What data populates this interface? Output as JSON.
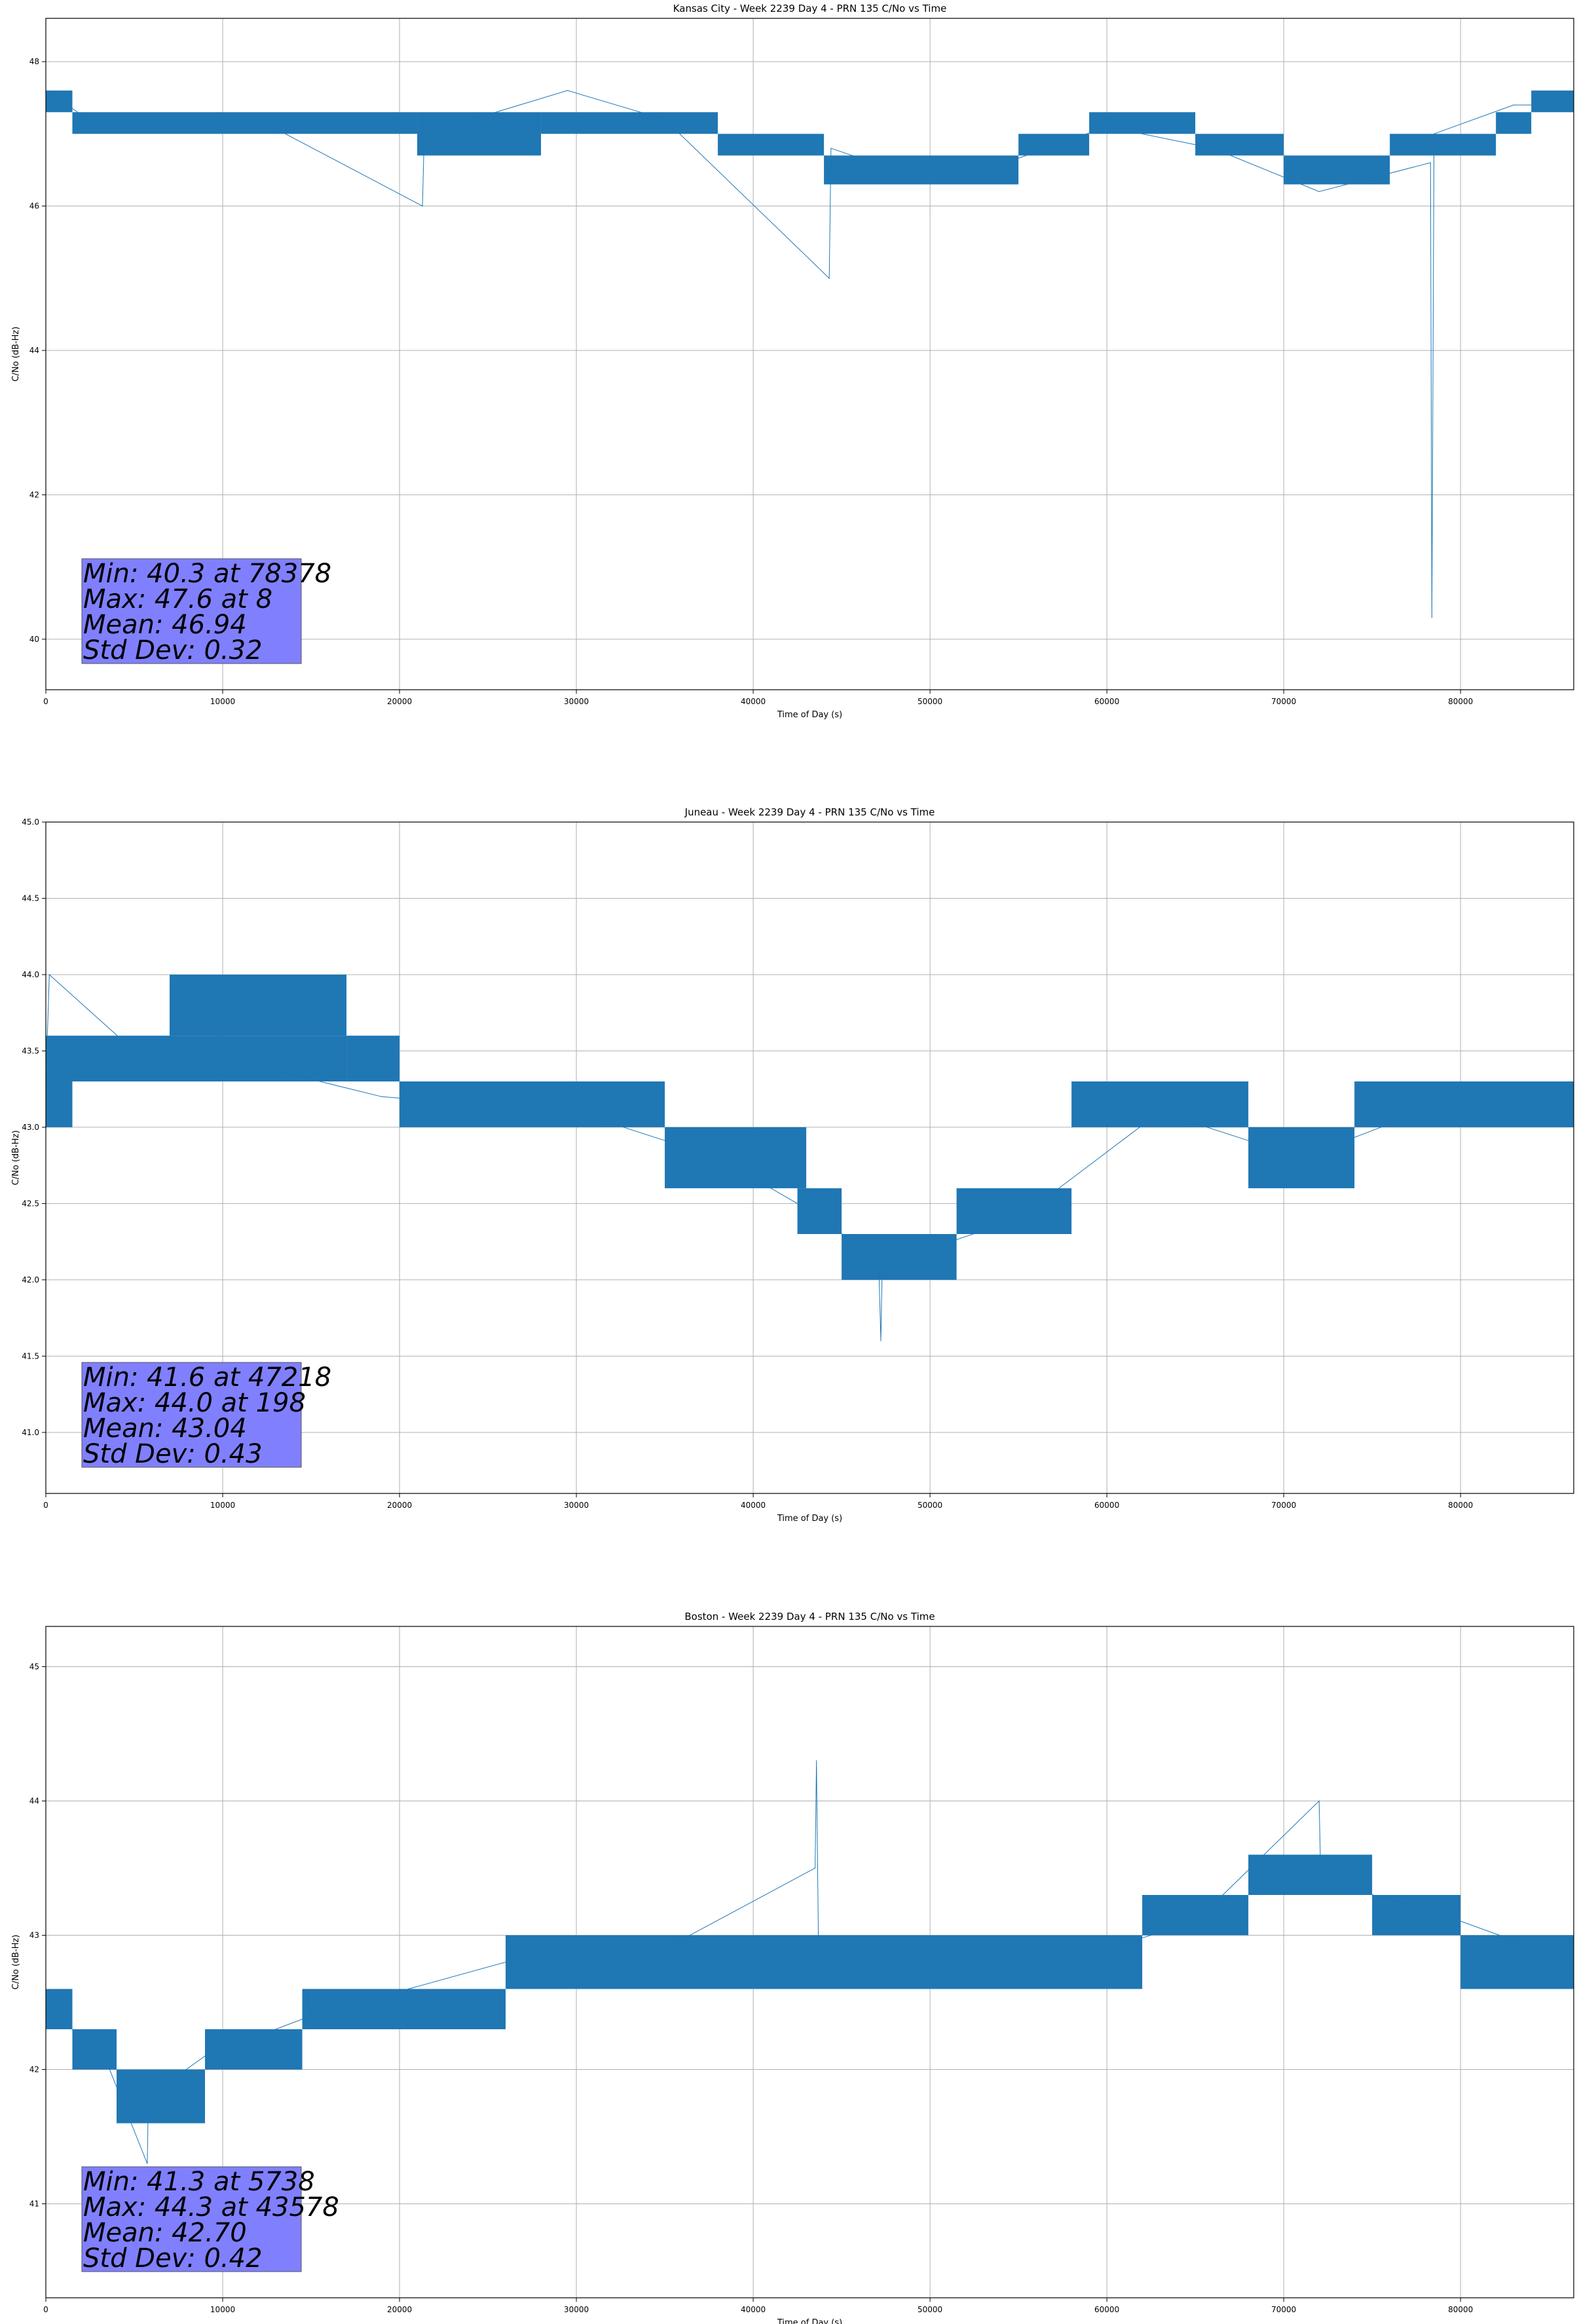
{
  "colors": {
    "series": "#1f77b4",
    "stats_box": "#8080ff",
    "grid": "#b0b0b0"
  },
  "chart_data": [
    {
      "type": "line",
      "title": "Kansas City - Week 2239 Day 4 - PRN 135 C/No vs Time",
      "xlabel": "Time of Day (s)",
      "ylabel": "C/No (dB-Hz)",
      "xlim": [
        0,
        86400
      ],
      "ylim": [
        39.3,
        48.6
      ],
      "xticks": [
        0,
        10000,
        20000,
        30000,
        40000,
        50000,
        60000,
        70000,
        80000
      ],
      "yticks": [
        40,
        42,
        44,
        46,
        48
      ],
      "ytick_labels": [
        "40",
        "42",
        "44",
        "46",
        "48"
      ],
      "grid": true,
      "stats": [
        "Min: 40.3 at 78378",
        "Max: 47.6 at 8",
        "Mean: 46.94",
        "Std Dev: 0.32"
      ],
      "bands": [
        [
          0,
          1500,
          47.3,
          47.6
        ],
        [
          1500,
          21000,
          47.0,
          47.3
        ],
        [
          21000,
          28000,
          46.7,
          47.3
        ],
        [
          28000,
          38000,
          47.0,
          47.3
        ],
        [
          38000,
          44000,
          46.7,
          47.0
        ],
        [
          44000,
          55000,
          46.3,
          46.7
        ],
        [
          55000,
          59000,
          46.7,
          47.0
        ],
        [
          59000,
          65000,
          47.0,
          47.3
        ],
        [
          65000,
          70000,
          46.7,
          47.0
        ],
        [
          70000,
          76000,
          46.3,
          46.7
        ],
        [
          76000,
          82000,
          46.7,
          47.0
        ],
        [
          82000,
          84000,
          47.0,
          47.3
        ],
        [
          84000,
          86400,
          47.3,
          47.6
        ]
      ],
      "x": [
        0,
        8,
        3000,
        12000,
        21300,
        21400,
        29500,
        35000,
        44300,
        44400,
        48000,
        52000,
        60000,
        66000,
        72000,
        78300,
        78378,
        78500,
        83000,
        86400
      ],
      "y": [
        47.3,
        47.6,
        47.1,
        47.2,
        46.0,
        47.0,
        47.6,
        47.2,
        45.0,
        46.8,
        46.5,
        46.4,
        47.1,
        46.8,
        46.2,
        46.6,
        40.3,
        47.0,
        47.4,
        47.4
      ]
    },
    {
      "type": "line",
      "title": "Juneau - Week 2239 Day 4 - PRN 135 C/No vs Time",
      "xlabel": "Time of Day (s)",
      "ylabel": "C/No (dB-Hz)",
      "xlim": [
        0,
        86400
      ],
      "ylim": [
        40.6,
        45.0
      ],
      "xticks": [
        0,
        10000,
        20000,
        30000,
        40000,
        50000,
        60000,
        70000,
        80000
      ],
      "yticks": [
        41.0,
        41.5,
        42.0,
        42.5,
        43.0,
        43.5,
        44.0,
        44.5,
        45.0
      ],
      "ytick_labels": [
        "41.0",
        "41.5",
        "42.0",
        "42.5",
        "43.0",
        "43.5",
        "44.0",
        "44.5",
        "45.0"
      ],
      "grid": true,
      "stats": [
        "Min: 41.6 at 47218",
        "Max: 44.0 at 198",
        "Mean: 43.04",
        "Std Dev: 0.43"
      ],
      "bands": [
        [
          0,
          1500,
          43.0,
          43.6
        ],
        [
          1500,
          17000,
          43.3,
          43.6
        ],
        [
          7000,
          17000,
          43.6,
          44.0
        ],
        [
          17000,
          20000,
          43.3,
          43.6
        ],
        [
          20000,
          35000,
          43.0,
          43.3
        ],
        [
          35000,
          43000,
          42.6,
          43.0
        ],
        [
          42500,
          45000,
          42.3,
          42.6
        ],
        [
          45000,
          51500,
          42.0,
          42.3
        ],
        [
          51500,
          58000,
          42.3,
          42.6
        ],
        [
          58000,
          68000,
          43.0,
          43.3
        ],
        [
          68000,
          74000,
          42.6,
          43.0
        ],
        [
          74000,
          86400,
          43.0,
          43.3
        ]
      ],
      "x": [
        0,
        198,
        5000,
        12000,
        19000,
        30000,
        38000,
        44000,
        47100,
        47218,
        47300,
        55000,
        63000,
        71000,
        80000,
        86400
      ],
      "y": [
        43.3,
        44.0,
        43.5,
        43.4,
        43.2,
        43.1,
        42.8,
        42.4,
        42.1,
        41.6,
        42.1,
        42.4,
        43.1,
        42.8,
        43.2,
        43.1
      ]
    },
    {
      "type": "line",
      "title": "Boston - Week 2239 Day 4 - PRN 135 C/No vs Time",
      "xlabel": "Time of Day (s)",
      "ylabel": "C/No (dB-Hz)",
      "xlim": [
        0,
        86400
      ],
      "ylim": [
        40.3,
        45.3
      ],
      "xticks": [
        0,
        10000,
        20000,
        30000,
        40000,
        50000,
        60000,
        70000,
        80000
      ],
      "yticks": [
        41,
        42,
        43,
        44,
        45
      ],
      "ytick_labels": [
        "41",
        "42",
        "43",
        "44",
        "45"
      ],
      "grid": true,
      "stats": [
        "Min: 41.3 at 5738",
        "Max: 44.3 at 43578",
        "Mean: 42.70",
        "Std Dev: 0.42"
      ],
      "bands": [
        [
          0,
          1500,
          42.3,
          42.6
        ],
        [
          1500,
          4000,
          42.0,
          42.3
        ],
        [
          4000,
          9000,
          41.6,
          42.0
        ],
        [
          9000,
          14500,
          42.0,
          42.3
        ],
        [
          14500,
          26000,
          42.3,
          42.6
        ],
        [
          26000,
          62000,
          42.6,
          43.0
        ],
        [
          62000,
          68000,
          43.0,
          43.3
        ],
        [
          68000,
          75000,
          43.3,
          43.6
        ],
        [
          75000,
          80000,
          43.0,
          43.3
        ],
        [
          80000,
          86400,
          42.6,
          43.0
        ]
      ],
      "x": [
        0,
        3000,
        5738,
        5800,
        9000,
        15000,
        26000,
        35000,
        43500,
        43578,
        43700,
        50000,
        60000,
        65000,
        72000,
        72100,
        78000,
        86400
      ],
      "y": [
        42.4,
        42.2,
        41.3,
        41.8,
        42.1,
        42.4,
        42.8,
        42.9,
        43.5,
        44.3,
        42.8,
        42.8,
        42.9,
        43.1,
        44.0,
        43.4,
        43.2,
        42.8
      ]
    }
  ]
}
